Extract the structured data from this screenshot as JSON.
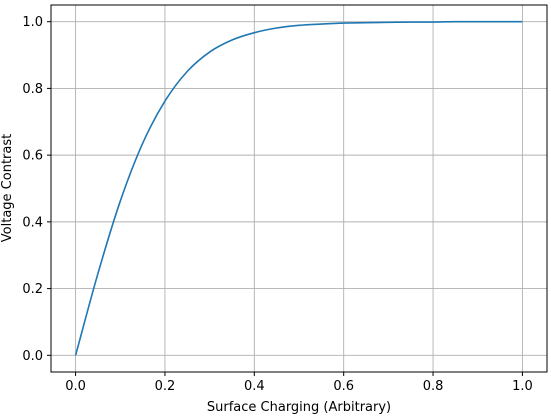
{
  "chart_data": {
    "type": "line",
    "title": "",
    "xlabel": "Surface Charging (Arbitrary)",
    "ylabel": "Voltage Contrast",
    "xlim": [
      -0.055,
      1.055
    ],
    "ylim": [
      -0.05,
      1.05
    ],
    "x_ticks": [
      0.0,
      0.2,
      0.4,
      0.6,
      0.8,
      1.0
    ],
    "y_ticks": [
      0.0,
      0.2,
      0.4,
      0.6,
      0.8,
      1.0
    ],
    "x_tick_labels": [
      "0.0",
      "0.2",
      "0.4",
      "0.6",
      "0.8",
      "1.0"
    ],
    "y_tick_labels": [
      "0.0",
      "0.2",
      "0.4",
      "0.6",
      "0.8",
      "1.0"
    ],
    "grid": true,
    "legend": "none",
    "series": [
      {
        "color": "#1f77b4",
        "x": [
          0.0,
          0.05,
          0.1,
          0.15,
          0.2,
          0.25,
          0.3,
          0.35,
          0.4,
          0.45,
          0.5,
          0.55,
          0.6,
          0.65,
          0.7,
          0.75,
          0.8,
          0.85,
          0.9,
          0.95,
          1.0
        ],
        "y": [
          0.0,
          0.245,
          0.462,
          0.635,
          0.762,
          0.851,
          0.909,
          0.945,
          0.967,
          0.981,
          0.989,
          0.993,
          0.996,
          0.997,
          0.998,
          0.999,
          0.999,
          1.0,
          1.0,
          1.0,
          1.0
        ]
      }
    ]
  }
}
